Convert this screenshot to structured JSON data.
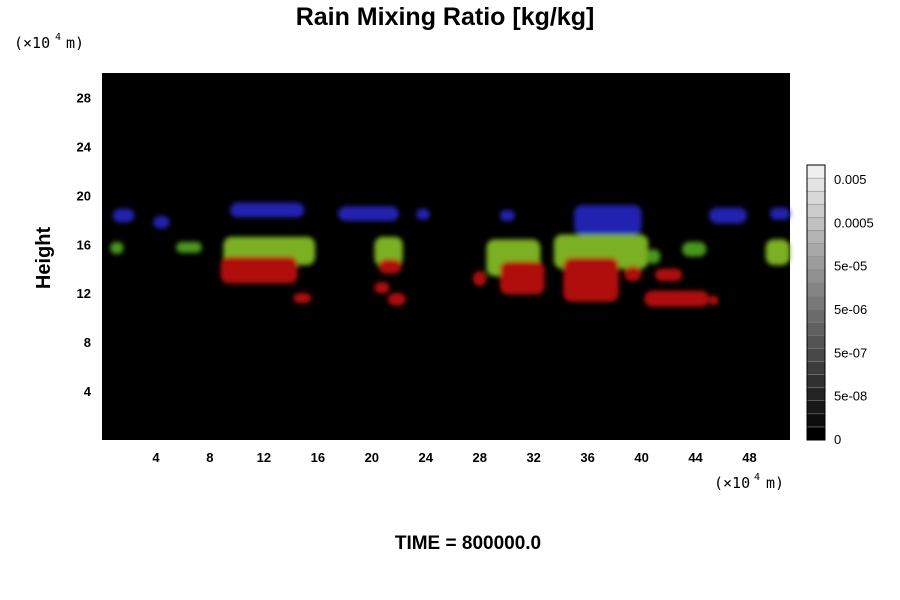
{
  "chart_data": {
    "type": "heatmap",
    "title": "Rain Mixing Ratio [kg/kg]",
    "ylabel": "Height",
    "y_unit": "(×10⁴ m)",
    "x_unit": "(×10⁴ m)",
    "x_ticks": [
      4,
      8,
      12,
      16,
      20,
      24,
      28,
      32,
      36,
      40,
      44,
      48
    ],
    "y_ticks": [
      4,
      8,
      12,
      16,
      20,
      24,
      28
    ],
    "xlim": [
      0,
      51
    ],
    "ylim": [
      0,
      30
    ],
    "colorbar": {
      "scale": "log",
      "labels": [
        "0.005",
        "0.0005",
        "5e-05",
        "5e-06",
        "5e-07",
        "5e-08",
        "0"
      ],
      "levels": 21
    },
    "features": [
      {
        "color": "#2020b0",
        "x": [
          0.8,
          2.4
        ],
        "y": [
          17.8,
          18.9
        ]
      },
      {
        "color": "#2020b0",
        "x": [
          3.8,
          5.0
        ],
        "y": [
          17.3,
          18.3
        ]
      },
      {
        "color": "#2020b0",
        "x": [
          9.5,
          15.0
        ],
        "y": [
          18.2,
          19.4
        ]
      },
      {
        "color": "#2020b0",
        "x": [
          17.5,
          22.0
        ],
        "y": [
          17.9,
          19.1
        ]
      },
      {
        "color": "#2020b0",
        "x": [
          23.3,
          24.3
        ],
        "y": [
          18.0,
          18.9
        ]
      },
      {
        "color": "#2020b0",
        "x": [
          29.5,
          30.6
        ],
        "y": [
          17.9,
          18.8
        ]
      },
      {
        "color": "#2020b0",
        "x": [
          35.0,
          40.0
        ],
        "y": [
          16.8,
          19.2
        ]
      },
      {
        "color": "#2020b0",
        "x": [
          45.0,
          47.8
        ],
        "y": [
          17.7,
          19.0
        ]
      },
      {
        "color": "#2020b0",
        "x": [
          49.5,
          51.0
        ],
        "y": [
          18.0,
          19.0
        ]
      },
      {
        "color": "#48961e",
        "x": [
          0.6,
          1.6
        ],
        "y": [
          15.2,
          16.2
        ]
      },
      {
        "color": "#48961e",
        "x": [
          5.5,
          7.4
        ],
        "y": [
          15.3,
          16.2
        ]
      },
      {
        "color": "#7ab020",
        "x": [
          9.0,
          15.8
        ],
        "y": [
          14.3,
          16.6
        ]
      },
      {
        "color": "#7ab020",
        "x": [
          20.2,
          22.3
        ],
        "y": [
          14.2,
          16.6
        ]
      },
      {
        "color": "#7ab020",
        "x": [
          28.5,
          32.5
        ],
        "y": [
          13.4,
          16.4
        ]
      },
      {
        "color": "#7ab020",
        "x": [
          33.5,
          40.5
        ],
        "y": [
          14.0,
          16.8
        ]
      },
      {
        "color": "#48961e",
        "x": [
          40.4,
          41.4
        ],
        "y": [
          14.4,
          15.6
        ]
      },
      {
        "color": "#48961e",
        "x": [
          43.0,
          44.8
        ],
        "y": [
          15.0,
          16.2
        ]
      },
      {
        "color": "#7ab020",
        "x": [
          49.2,
          51.0
        ],
        "y": [
          14.3,
          16.4
        ]
      },
      {
        "color": "#b01010",
        "x": [
          8.8,
          14.5
        ],
        "y": [
          12.8,
          15.0
        ]
      },
      {
        "color": "#b01010",
        "x": [
          14.2,
          15.5
        ],
        "y": [
          11.2,
          12.0
        ]
      },
      {
        "color": "#b01010",
        "x": [
          20.5,
          22.2
        ],
        "y": [
          13.6,
          14.8
        ]
      },
      {
        "color": "#b01010",
        "x": [
          20.2,
          21.3
        ],
        "y": [
          12.0,
          12.9
        ]
      },
      {
        "color": "#b01010",
        "x": [
          21.2,
          22.5
        ],
        "y": [
          11.0,
          12.0
        ]
      },
      {
        "color": "#b01010",
        "x": [
          27.5,
          28.5
        ],
        "y": [
          12.6,
          13.8
        ]
      },
      {
        "color": "#b01010",
        "x": [
          29.5,
          32.8
        ],
        "y": [
          11.9,
          14.6
        ]
      },
      {
        "color": "#b01010",
        "x": [
          34.2,
          38.3
        ],
        "y": [
          11.3,
          14.9
        ]
      },
      {
        "color": "#b01010",
        "x": [
          38.7,
          40.0
        ],
        "y": [
          13.0,
          14.2
        ]
      },
      {
        "color": "#b01010",
        "x": [
          40.2,
          45.0
        ],
        "y": [
          10.9,
          12.2
        ]
      },
      {
        "color": "#b01010",
        "x": [
          45.0,
          45.7
        ],
        "y": [
          11.0,
          11.8
        ]
      },
      {
        "color": "#b01010",
        "x": [
          41.0,
          43.0
        ],
        "y": [
          13.0,
          14.0
        ]
      }
    ]
  },
  "footer": {
    "time_label": "TIME = 800000.0"
  }
}
